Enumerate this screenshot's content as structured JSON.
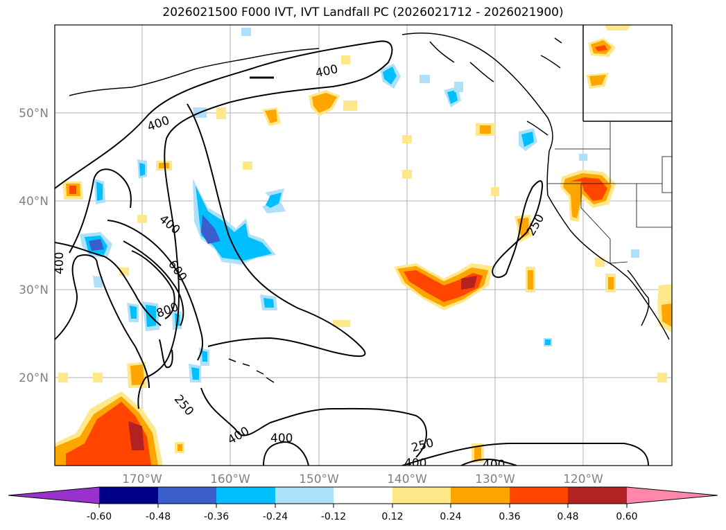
{
  "title": "2026021500 F000 IVT, IVT Landfall PC (2026021712 - 2026021900)",
  "map": {
    "lat_labels": [
      "50°N",
      "40°N",
      "30°N",
      "20°N"
    ],
    "lon_labels": [
      "170°W",
      "160°W",
      "150°W",
      "140°W",
      "130°W",
      "120°W"
    ],
    "contour_labels": [
      {
        "text": "400"
      },
      {
        "text": "400"
      },
      {
        "text": "400"
      },
      {
        "text": "600"
      },
      {
        "text": "800"
      },
      {
        "text": "400"
      },
      {
        "text": "250"
      },
      {
        "text": "400"
      },
      {
        "text": "400"
      },
      {
        "text": "250"
      },
      {
        "text": "400"
      },
      {
        "text": "400"
      },
      {
        "text": "250"
      }
    ]
  },
  "colorbar": {
    "ticks": [
      "-0.60",
      "-0.48",
      "-0.36",
      "-0.24",
      "-0.12",
      "0.12",
      "0.24",
      "0.36",
      "0.48",
      "0.60"
    ],
    "colors": [
      "#9932CC",
      "#00008B",
      "#3A5FCD",
      "#00BFFF",
      "#ADE0F9",
      "#FFFFFF",
      "#FFE88A",
      "#FFA500",
      "#FF4500",
      "#B22222",
      "#FF88AA"
    ]
  }
}
